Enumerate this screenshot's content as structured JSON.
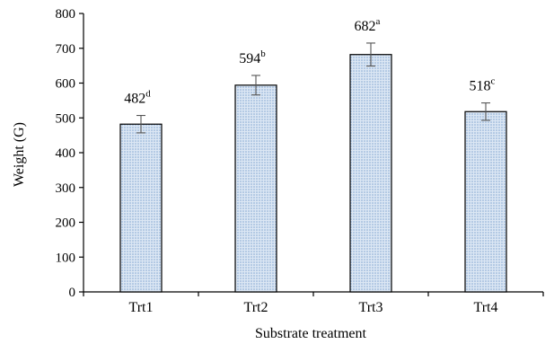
{
  "chart_data": {
    "type": "bar",
    "title": "",
    "xlabel": "Substrate treatment",
    "ylabel": "Weight (G)",
    "ylim": [
      0,
      800
    ],
    "yticks": [
      0,
      100,
      200,
      300,
      400,
      500,
      600,
      700,
      800
    ],
    "categories": [
      "Trt1",
      "Trt2",
      "Trt3",
      "Trt4"
    ],
    "values": [
      482,
      594,
      682,
      518
    ],
    "errors": [
      25,
      28,
      33,
      25
    ],
    "significance_letters": [
      "d",
      "b",
      "a",
      "c"
    ],
    "grid": false,
    "legend": "none",
    "colors": {
      "bar_fill": "#dce7f4",
      "bar_dots": "#7da3cf",
      "bar_stroke": "#000000",
      "error_bar": "#555555",
      "axis": "#000000"
    }
  }
}
